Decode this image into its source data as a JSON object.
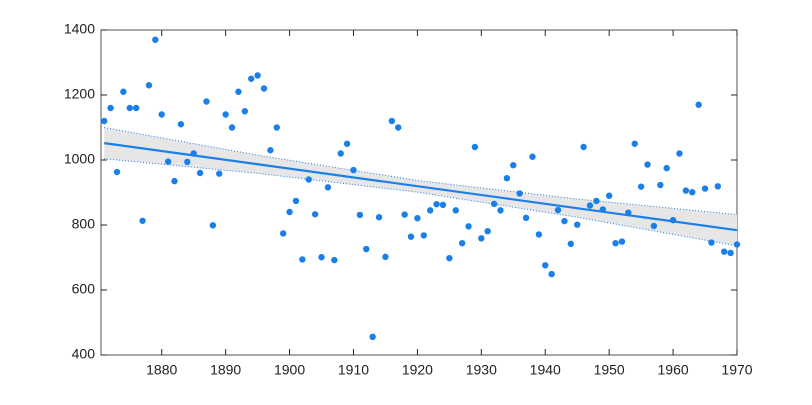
{
  "chart_data": {
    "type": "scatter",
    "x": [
      1871,
      1872,
      1873,
      1874,
      1875,
      1876,
      1877,
      1878,
      1879,
      1880,
      1881,
      1882,
      1883,
      1884,
      1885,
      1886,
      1887,
      1888,
      1889,
      1890,
      1891,
      1892,
      1893,
      1894,
      1895,
      1896,
      1897,
      1898,
      1899,
      1900,
      1901,
      1902,
      1903,
      1904,
      1905,
      1906,
      1907,
      1908,
      1909,
      1910,
      1911,
      1912,
      1913,
      1914,
      1915,
      1916,
      1917,
      1918,
      1919,
      1920,
      1921,
      1922,
      1923,
      1924,
      1925,
      1926,
      1927,
      1928,
      1929,
      1930,
      1931,
      1932,
      1933,
      1934,
      1935,
      1936,
      1937,
      1938,
      1939,
      1940,
      1941,
      1942,
      1943,
      1944,
      1945,
      1946,
      1947,
      1948,
      1949,
      1950,
      1951,
      1952,
      1953,
      1954,
      1955,
      1956,
      1957,
      1958,
      1959,
      1960,
      1961,
      1962,
      1963,
      1964,
      1965,
      1966,
      1967,
      1968,
      1969,
      1970
    ],
    "values": [
      1120,
      1160,
      963,
      1210,
      1160,
      1160,
      813,
      1230,
      1370,
      1140,
      995,
      935,
      1110,
      994,
      1020,
      960,
      1180,
      799,
      958,
      1140,
      1100,
      1210,
      1150,
      1250,
      1260,
      1220,
      1030,
      1100,
      774,
      840,
      874,
      694,
      940,
      833,
      701,
      916,
      692,
      1020,
      1050,
      969,
      831,
      726,
      456,
      824,
      702,
      1120,
      1100,
      832,
      764,
      821,
      768,
      845,
      864,
      862,
      698,
      845,
      744,
      796,
      1040,
      759,
      781,
      865,
      845,
      944,
      984,
      897,
      822,
      1010,
      771,
      676,
      649,
      846,
      812,
      742,
      801,
      1040,
      860,
      874,
      848,
      890,
      744,
      749,
      838,
      1050,
      918,
      986,
      797,
      923,
      975,
      815,
      1020,
      906,
      901,
      1170,
      912,
      746,
      919,
      718,
      714,
      740
    ],
    "color": "#1a7fe8",
    "fit": {
      "x": [
        1871,
        1970
      ],
      "values": [
        1052,
        784
      ]
    },
    "band": {
      "x": [
        1871,
        1895,
        1920,
        1945,
        1970
      ],
      "upper": [
        1100,
        1015,
        937,
        880,
        832
      ],
      "lower": [
        1004,
        959,
        901,
        824,
        736
      ],
      "color": "#e6e6e6"
    },
    "xlim": [
      1870.5,
      1970
    ],
    "xticks": [
      1880,
      1890,
      1900,
      1910,
      1920,
      1930,
      1940,
      1950,
      1960,
      1970
    ],
    "ylim": [
      400,
      1400
    ],
    "yticks": [
      400,
      600,
      800,
      1000,
      1200,
      1400
    ],
    "grid": false
  }
}
